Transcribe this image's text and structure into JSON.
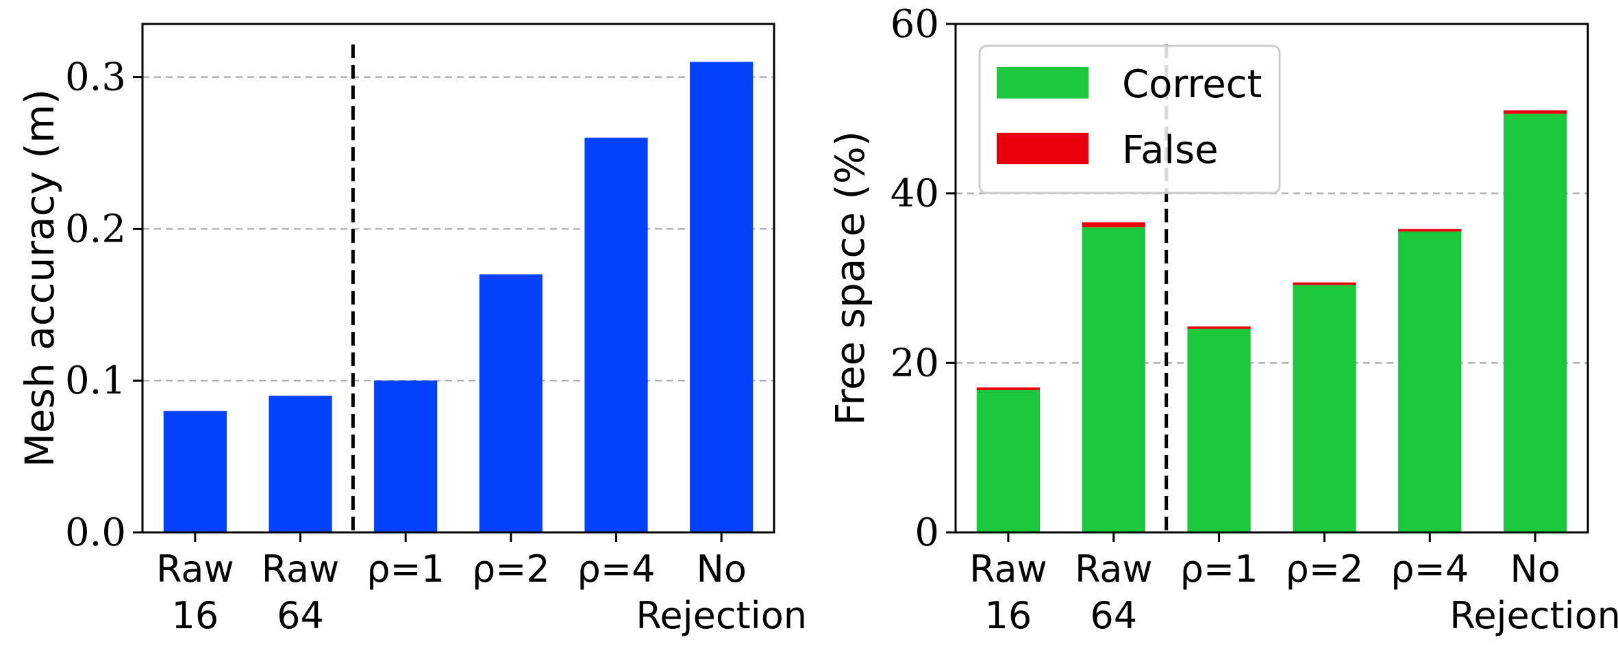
{
  "chart_data": [
    {
      "type": "bar",
      "categories": [
        {
          "line1": "Raw",
          "line2": "16"
        },
        {
          "line1": "Raw",
          "line2": "64"
        },
        {
          "line1": "ρ=1",
          "line2": ""
        },
        {
          "line1": "ρ=2",
          "line2": ""
        },
        {
          "line1": "ρ=4",
          "line2": ""
        },
        {
          "line1": "No",
          "line2": "Rejection"
        }
      ],
      "values": [
        0.08,
        0.09,
        0.1,
        0.17,
        0.26,
        0.31
      ],
      "ylabel": "Mesh accuracy (m)",
      "xlabel": "",
      "ylim": [
        0,
        0.335
      ],
      "yticks": [
        0.0,
        0.1,
        0.2,
        0.3
      ],
      "ytick_labels": [
        "0.0",
        "0.1",
        "0.2",
        "0.3"
      ],
      "color": "#0341fe",
      "grid": "dashed horizontal",
      "divider_after_index": 1
    },
    {
      "type": "bar",
      "stacked": true,
      "categories": [
        {
          "line1": "Raw",
          "line2": "16"
        },
        {
          "line1": "Raw",
          "line2": "64"
        },
        {
          "line1": "ρ=1",
          "line2": ""
        },
        {
          "line1": "ρ=2",
          "line2": ""
        },
        {
          "line1": "ρ=4",
          "line2": ""
        },
        {
          "line1": "No",
          "line2": "Rejection"
        }
      ],
      "series": [
        {
          "name": "Correct",
          "color": "#1bc73b",
          "values": [
            16.8,
            36.0,
            24.0,
            29.2,
            35.5,
            49.4
          ]
        },
        {
          "name": "False",
          "color": "#e8000b",
          "values": [
            0.3,
            0.6,
            0.3,
            0.3,
            0.3,
            0.4
          ]
        }
      ],
      "ylabel": "Free space (%)",
      "xlabel": "",
      "ylim": [
        0,
        60
      ],
      "yticks": [
        0,
        20,
        40,
        60
      ],
      "ytick_labels": [
        "0",
        "20",
        "40",
        "60"
      ],
      "legend": "top-left",
      "grid": "dashed horizontal",
      "divider_after_index": 1
    }
  ]
}
